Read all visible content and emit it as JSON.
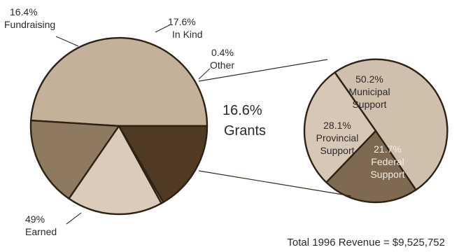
{
  "chart_data": [
    {
      "type": "pie",
      "slices": [
        {
          "label": "Earned",
          "pct_label": "49%",
          "value": 49.0,
          "color": "#c3b19a",
          "text_color": "#2b2b2b"
        },
        {
          "label": "Fundraising",
          "pct_label": "16.4%",
          "value": 16.4,
          "color": "#8e7a61",
          "text_color": "#2b2b2b"
        },
        {
          "label": "In Kind",
          "pct_label": "17.6%",
          "value": 17.6,
          "color": "#dbcbbb",
          "text_color": "#2b2b2b"
        },
        {
          "label": "Other",
          "pct_label": "0.4%",
          "value": 0.4,
          "color": "#b5a18a",
          "text_color": "#2b2b2b"
        },
        {
          "label": "Grants",
          "pct_label": "16.6%",
          "value": 16.6,
          "color": "#4f3b23",
          "text_color": "#2b2b2b"
        }
      ]
    },
    {
      "type": "pie",
      "breakdown_of": "Grants",
      "slices": [
        {
          "label": "Municipal Support",
          "pct_label": "50.2%",
          "value": 50.2,
          "color": "#cfbfad",
          "text_color": "#2b2b2b"
        },
        {
          "label": "Federal Support",
          "pct_label": "21.7%",
          "value": 21.7,
          "color": "#7e6a52",
          "text_color": "#f2ece2"
        },
        {
          "label": "Provincial Support",
          "pct_label": "28.1%",
          "value": 28.1,
          "color": "#d6c7b6",
          "text_color": "#2b2b2b"
        }
      ]
    }
  ],
  "labels": {
    "fundraising_pct": "16.4%",
    "fundraising": "Fundraising",
    "inkind_pct": "17.6%",
    "inkind": "In Kind",
    "other_pct": "0.4%",
    "other": "Other",
    "grants_pct": "16.6%",
    "grants": "Grants",
    "earned_pct": "49%",
    "earned": "Earned",
    "municipal_pct": "50.2%",
    "municipal_1": "Municipal",
    "municipal_2": "Support",
    "provincial_pct": "28.1%",
    "provincial_1": "Provincial",
    "provincial_2": "Support",
    "federal_pct": "21.7%",
    "federal_1": "Federal",
    "federal_2": "Support"
  },
  "footer": "Total 1996 Revenue = $9,525,752"
}
